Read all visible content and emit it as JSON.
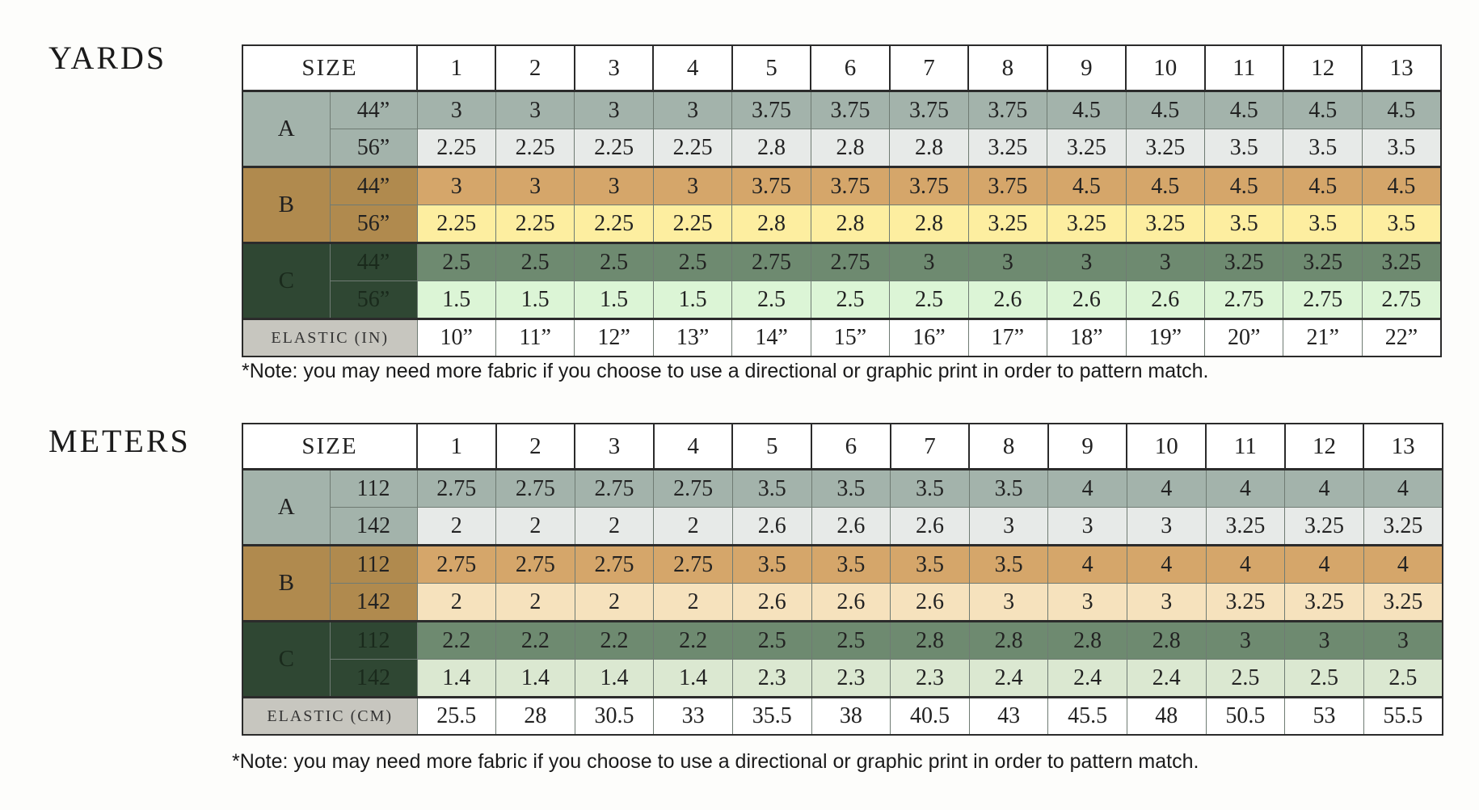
{
  "colors": {
    "A_label": "#a3b3ab",
    "B_label": "#b08a4e",
    "C_label": "#2f4733",
    "A_row1": "#a3b3ab",
    "A_row2": "#e7eae8",
    "B_row1": "#d5a66a",
    "B_row2_yards": "#fdeea0",
    "B_row2_meters": "#f6e2bd",
    "C_row1": "#6e8a70",
    "C_row2_yards": "#dcf5d6",
    "C_row2_meters": "#dbe8d1"
  },
  "yards": {
    "title": "YARDS",
    "size_label": "SIZE",
    "sizes": [
      "1",
      "2",
      "3",
      "4",
      "5",
      "6",
      "7",
      "8",
      "9",
      "10",
      "11",
      "12",
      "13"
    ],
    "groups": [
      {
        "label": "A",
        "rows": [
          {
            "width": "44”",
            "values": [
              "3",
              "3",
              "3",
              "3",
              "3.75",
              "3.75",
              "3.75",
              "3.75",
              "4.5",
              "4.5",
              "4.5",
              "4.5",
              "4.5"
            ]
          },
          {
            "width": "56”",
            "values": [
              "2.25",
              "2.25",
              "2.25",
              "2.25",
              "2.8",
              "2.8",
              "2.8",
              "3.25",
              "3.25",
              "3.25",
              "3.5",
              "3.5",
              "3.5"
            ]
          }
        ]
      },
      {
        "label": "B",
        "rows": [
          {
            "width": "44”",
            "values": [
              "3",
              "3",
              "3",
              "3",
              "3.75",
              "3.75",
              "3.75",
              "3.75",
              "4.5",
              "4.5",
              "4.5",
              "4.5",
              "4.5"
            ]
          },
          {
            "width": "56”",
            "values": [
              "2.25",
              "2.25",
              "2.25",
              "2.25",
              "2.8",
              "2.8",
              "2.8",
              "3.25",
              "3.25",
              "3.25",
              "3.5",
              "3.5",
              "3.5"
            ]
          }
        ]
      },
      {
        "label": "C",
        "rows": [
          {
            "width": "44”",
            "values": [
              "2.5",
              "2.5",
              "2.5",
              "2.5",
              "2.75",
              "2.75",
              "3",
              "3",
              "3",
              "3",
              "3.25",
              "3.25",
              "3.25"
            ]
          },
          {
            "width": "56”",
            "values": [
              "1.5",
              "1.5",
              "1.5",
              "1.5",
              "2.5",
              "2.5",
              "2.5",
              "2.6",
              "2.6",
              "2.6",
              "2.75",
              "2.75",
              "2.75"
            ]
          }
        ]
      }
    ],
    "elastic_label": "ELASTIC (IN)",
    "elastic": [
      "10”",
      "11”",
      "12”",
      "13”",
      "14”",
      "15”",
      "16”",
      "17”",
      "18”",
      "19”",
      "20”",
      "21”",
      "22”"
    ],
    "note": "*Note: you may need more fabric if you choose to use a directional or graphic print in order to pattern match."
  },
  "meters": {
    "title": "METERS",
    "size_label": "SIZE",
    "sizes": [
      "1",
      "2",
      "3",
      "4",
      "5",
      "6",
      "7",
      "8",
      "9",
      "10",
      "11",
      "12",
      "13"
    ],
    "groups": [
      {
        "label": "A",
        "rows": [
          {
            "width": "112",
            "values": [
              "2.75",
              "2.75",
              "2.75",
              "2.75",
              "3.5",
              "3.5",
              "3.5",
              "3.5",
              "4",
              "4",
              "4",
              "4",
              "4"
            ]
          },
          {
            "width": "142",
            "values": [
              "2",
              "2",
              "2",
              "2",
              "2.6",
              "2.6",
              "2.6",
              "3",
              "3",
              "3",
              "3.25",
              "3.25",
              "3.25"
            ]
          }
        ]
      },
      {
        "label": "B",
        "rows": [
          {
            "width": "112",
            "values": [
              "2.75",
              "2.75",
              "2.75",
              "2.75",
              "3.5",
              "3.5",
              "3.5",
              "3.5",
              "4",
              "4",
              "4",
              "4",
              "4"
            ]
          },
          {
            "width": "142",
            "values": [
              "2",
              "2",
              "2",
              "2",
              "2.6",
              "2.6",
              "2.6",
              "3",
              "3",
              "3",
              "3.25",
              "3.25",
              "3.25"
            ]
          }
        ]
      },
      {
        "label": "C",
        "rows": [
          {
            "width": "112",
            "values": [
              "2.2",
              "2.2",
              "2.2",
              "2.2",
              "2.5",
              "2.5",
              "2.8",
              "2.8",
              "2.8",
              "2.8",
              "3",
              "3",
              "3"
            ]
          },
          {
            "width": "142",
            "values": [
              "1.4",
              "1.4",
              "1.4",
              "1.4",
              "2.3",
              "2.3",
              "2.3",
              "2.4",
              "2.4",
              "2.4",
              "2.5",
              "2.5",
              "2.5"
            ]
          }
        ]
      }
    ],
    "elastic_label": "ELASTIC (CM)",
    "elastic": [
      "25.5",
      "28",
      "30.5",
      "33",
      "35.5",
      "38",
      "40.5",
      "43",
      "45.5",
      "48",
      "50.5",
      "53",
      "55.5"
    ],
    "note": "*Note: you may need more fabric if you choose to use a directional or graphic print in order to pattern match."
  }
}
